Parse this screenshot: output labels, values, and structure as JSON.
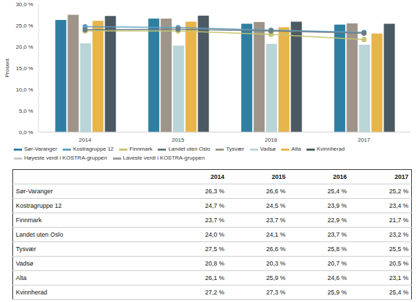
{
  "chart_data": {
    "type": "bar",
    "y_label": "Prosent",
    "categories": [
      "2014",
      "2015",
      "2016",
      "2017"
    ],
    "ylim": [
      0,
      30
    ],
    "yticks": [
      {
        "value": 0,
        "label": "0,0 %"
      },
      {
        "value": 5,
        "label": "5,0 %"
      },
      {
        "value": 10,
        "label": "10,0 %"
      },
      {
        "value": 15,
        "label": "15,0 %"
      },
      {
        "value": 20,
        "label": "20,0 %"
      },
      {
        "value": 25,
        "label": "25,0 %"
      },
      {
        "value": 30,
        "label": "30,0 %"
      }
    ],
    "grid": false,
    "legend": "bottom",
    "series": [
      {
        "name": "Sør-Varanger",
        "type": "bar",
        "color": "#2f7fa3",
        "values": [
          26.3,
          26.6,
          25.4,
          25.2
        ]
      },
      {
        "name": "Kostragruppe 12",
        "type": "line",
        "marker": "circle",
        "color": "#5f9fbf",
        "values": [
          24.7,
          24.5,
          23.9,
          23.4
        ]
      },
      {
        "name": "Finnmark",
        "type": "line",
        "marker": "circle",
        "color": "#c4c46e",
        "values": [
          23.7,
          23.7,
          22.9,
          21.7
        ]
      },
      {
        "name": "Landet uten Oslo",
        "type": "line",
        "marker": "circle",
        "color": "#6b7b82",
        "values": [
          24.0,
          24.1,
          23.7,
          23.2
        ]
      },
      {
        "name": "Tysvær",
        "type": "bar",
        "color": "#9e948a",
        "values": [
          27.5,
          26.6,
          25.8,
          25.5
        ]
      },
      {
        "name": "Vadsø",
        "type": "bar",
        "color": "#b9d5d7",
        "values": [
          20.8,
          20.3,
          20.7,
          20.5
        ]
      },
      {
        "name": "Alta",
        "type": "bar",
        "color": "#e8b54a",
        "values": [
          26.1,
          25.9,
          24.6,
          23.1
        ]
      },
      {
        "name": "Kvinnherad",
        "type": "bar",
        "color": "#4b5a62",
        "values": [
          27.2,
          27.3,
          25.9,
          25.4
        ]
      },
      {
        "name": "Høyeste verdi i KOSTRA-gruppen",
        "type": "line",
        "marker": "circle",
        "color": "#c8c8c8",
        "values": [
          null,
          null,
          null,
          null
        ]
      },
      {
        "name": "Laveste verdi i KOSTRA-gruppen",
        "type": "line",
        "marker": "circle",
        "color": "#9a9a9a",
        "values": [
          null,
          null,
          null,
          null
        ]
      }
    ]
  },
  "table": {
    "columns": [
      "2014",
      "2015",
      "2016",
      "2017"
    ],
    "rows": [
      [
        "Sør-Varanger",
        "26,3 %",
        "26,6 %",
        "25,4 %",
        "25,2 %"
      ],
      [
        "Kostragruppe 12",
        "24,7 %",
        "24,5 %",
        "23,9 %",
        "23,4 %"
      ],
      [
        "Finnmark",
        "23,7 %",
        "23,7 %",
        "22,9 %",
        "21,7 %"
      ],
      [
        "Landet uten Oslo",
        "24,0 %",
        "24,1 %",
        "23,7 %",
        "23,2 %"
      ],
      [
        "Tysvær",
        "27,5 %",
        "26,6 %",
        "25,8 %",
        "25,5 %"
      ],
      [
        "Vadsø",
        "20,8 %",
        "20,3 %",
        "20,7 %",
        "20,5 %"
      ],
      [
        "Alta",
        "26,1 %",
        "25,9 %",
        "24,6 %",
        "23,1 %"
      ],
      [
        "Kvinnherad",
        "27,2 %",
        "27,3 %",
        "25,9 %",
        "25,4 %"
      ]
    ]
  }
}
